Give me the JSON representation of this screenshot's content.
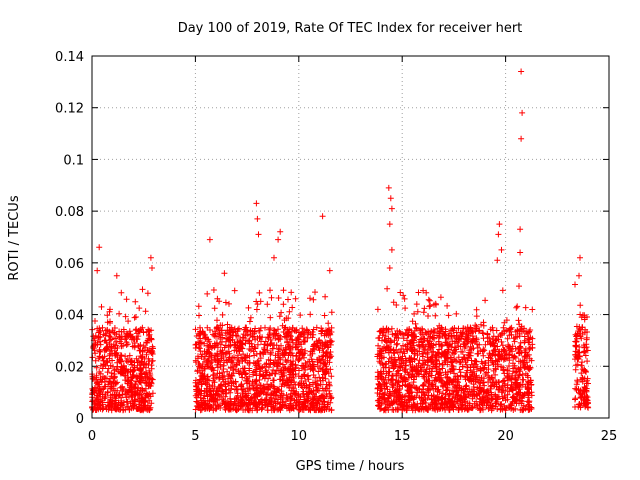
{
  "chart_data": {
    "type": "scatter",
    "title": "Day 100 of 2019, Rate Of TEC Index for receiver hert",
    "xlabel": "GPS time / hours",
    "ylabel": "ROTI / TECUs",
    "xlim": [
      0,
      25
    ],
    "ylim": [
      0,
      0.14
    ],
    "x_ticks": [
      0,
      5,
      10,
      15,
      20,
      25
    ],
    "x_tick_labels": [
      "0",
      "5",
      "10",
      "15",
      "20",
      "25"
    ],
    "y_ticks": [
      0,
      0.02,
      0.04,
      0.06,
      0.08,
      0.1,
      0.12,
      0.14
    ],
    "y_tick_labels": [
      "0",
      "0.02",
      "0.04",
      "0.06",
      "0.08",
      "0.1",
      "0.12",
      "0.14"
    ],
    "grid": true,
    "marker": "+",
    "color": "#ff0000",
    "series": [
      {
        "name": "ROTI",
        "notable_points": [
          {
            "x": 0.35,
            "y": 0.066
          },
          {
            "x": 0.25,
            "y": 0.057
          },
          {
            "x": 1.2,
            "y": 0.055
          },
          {
            "x": 2.85,
            "y": 0.062
          },
          {
            "x": 2.9,
            "y": 0.058
          },
          {
            "x": 5.7,
            "y": 0.069
          },
          {
            "x": 6.4,
            "y": 0.056
          },
          {
            "x": 7.95,
            "y": 0.083
          },
          {
            "x": 8.0,
            "y": 0.077
          },
          {
            "x": 8.05,
            "y": 0.071
          },
          {
            "x": 9.1,
            "y": 0.072
          },
          {
            "x": 9.0,
            "y": 0.069
          },
          {
            "x": 8.8,
            "y": 0.062
          },
          {
            "x": 11.15,
            "y": 0.078
          },
          {
            "x": 11.5,
            "y": 0.057
          },
          {
            "x": 14.35,
            "y": 0.089
          },
          {
            "x": 14.45,
            "y": 0.085
          },
          {
            "x": 14.5,
            "y": 0.081
          },
          {
            "x": 14.4,
            "y": 0.075
          },
          {
            "x": 14.5,
            "y": 0.065
          },
          {
            "x": 14.4,
            "y": 0.058
          },
          {
            "x": 19.7,
            "y": 0.075
          },
          {
            "x": 19.65,
            "y": 0.071
          },
          {
            "x": 19.8,
            "y": 0.065
          },
          {
            "x": 19.6,
            "y": 0.061
          },
          {
            "x": 20.75,
            "y": 0.134
          },
          {
            "x": 20.8,
            "y": 0.118
          },
          {
            "x": 20.75,
            "y": 0.108
          },
          {
            "x": 20.7,
            "y": 0.073
          },
          {
            "x": 20.7,
            "y": 0.064
          },
          {
            "x": 20.65,
            "y": 0.051
          },
          {
            "x": 23.6,
            "y": 0.062
          },
          {
            "x": 23.55,
            "y": 0.055
          }
        ],
        "dense_segments": [
          {
            "x_start": 0.0,
            "x_end": 2.95,
            "y_min": 0.003,
            "y_typical_max": 0.035,
            "y_max": 0.05
          },
          {
            "x_start": 5.0,
            "x_end": 11.6,
            "y_min": 0.003,
            "y_typical_max": 0.035,
            "y_max": 0.05
          },
          {
            "x_start": 13.8,
            "x_end": 21.3,
            "y_min": 0.003,
            "y_typical_max": 0.035,
            "y_max": 0.05
          },
          {
            "x_start": 23.35,
            "x_end": 24.0,
            "y_min": 0.004,
            "y_typical_max": 0.04,
            "y_max": 0.055
          }
        ]
      }
    ]
  }
}
